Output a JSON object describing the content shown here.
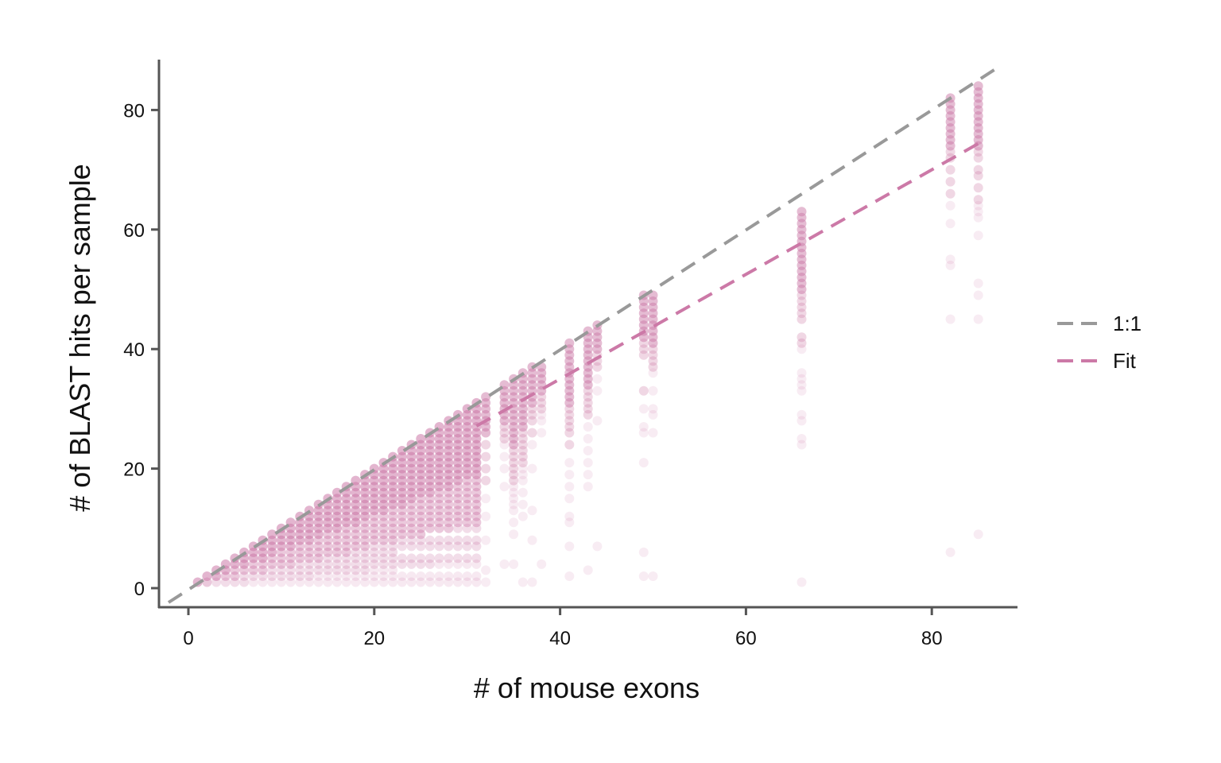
{
  "chart_data": {
    "type": "scatter",
    "xlabel": "# of mouse exons",
    "ylabel": "# of BLAST hits per sample",
    "xlim": [
      -3,
      88
    ],
    "ylim": [
      -3,
      88
    ],
    "x_ticks": [
      0,
      20,
      40,
      60,
      80
    ],
    "y_ticks": [
      0,
      20,
      40,
      60,
      80
    ],
    "grid": false,
    "legend_position": "right",
    "point_color": "#cc79a7",
    "lines": [
      {
        "name": "1:1",
        "color": "#999999",
        "style": "dashed",
        "slope": 1,
        "intercept": 0
      },
      {
        "name": "Fit",
        "color": "#cc79a7",
        "style": "dashed",
        "slope": 0.875,
        "intercept": 0,
        "x_from": 31
      }
    ],
    "series": [
      {
        "name": "samples",
        "description_of_density": "for x from 1 to 30 nearly every integer y from 1 to x is present",
        "dense_x_range": [
          1,
          31
        ],
        "columns": [
          {
            "x": 32,
            "y": [
              1,
              3,
              8,
              12,
              15,
              18,
              20,
              22,
              24,
              26,
              27,
              28,
              29,
              30,
              31,
              32
            ]
          },
          {
            "x": 34,
            "y": [
              4,
              17,
              20,
              22,
              24,
              25,
              26,
              27,
              28,
              29,
              30,
              31,
              32,
              33,
              34
            ]
          },
          {
            "x": 35,
            "y": [
              4,
              9,
              11,
              13,
              14,
              15,
              16,
              17,
              18,
              19,
              20,
              21,
              22,
              23,
              24,
              25,
              26,
              27,
              28,
              29,
              30,
              31,
              32,
              33,
              34,
              35
            ]
          },
          {
            "x": 36,
            "y": [
              1,
              12,
              14,
              16,
              18,
              19,
              20,
              21,
              22,
              23,
              24,
              25,
              26,
              27,
              28,
              29,
              30,
              31,
              32,
              33,
              34,
              35,
              36
            ]
          },
          {
            "x": 37,
            "y": [
              1,
              8,
              13,
              20,
              24,
              26,
              28,
              29,
              30,
              31,
              32,
              33,
              34,
              35,
              36,
              37
            ]
          },
          {
            "x": 38,
            "y": [
              4,
              26,
              28,
              29,
              30,
              31,
              32,
              33,
              34,
              35,
              36,
              37
            ]
          },
          {
            "x": 41,
            "y": [
              2,
              7,
              11,
              12,
              15,
              17,
              19,
              21,
              24,
              26,
              27,
              28,
              29,
              30,
              31,
              32,
              33,
              34,
              35,
              36,
              37,
              38,
              39,
              40,
              41
            ]
          },
          {
            "x": 43,
            "y": [
              3,
              17,
              19,
              21,
              23,
              25,
              27,
              29,
              30,
              31,
              32,
              33,
              34,
              35,
              36,
              37,
              38,
              39,
              40,
              41,
              42,
              43
            ]
          },
          {
            "x": 44,
            "y": [
              7,
              28,
              33,
              35,
              37,
              38,
              39,
              40,
              41,
              42,
              43,
              44
            ]
          },
          {
            "x": 49,
            "y": [
              2,
              6,
              21,
              26,
              27,
              30,
              33,
              39,
              40,
              41,
              42,
              43,
              44,
              45,
              46,
              47,
              48,
              49
            ]
          },
          {
            "x": 50,
            "y": [
              2,
              26,
              29,
              30,
              33,
              36,
              37,
              38,
              39,
              40,
              41,
              42,
              43,
              44,
              45,
              46,
              47,
              48,
              49
            ]
          },
          {
            "x": 66,
            "y": [
              1,
              24,
              25,
              28,
              29,
              33,
              34,
              35,
              36,
              40,
              41,
              42,
              45,
              46,
              47,
              48,
              49,
              50,
              51,
              52,
              53,
              54,
              55,
              56,
              57,
              58,
              59,
              60,
              61,
              62,
              63
            ]
          },
          {
            "x": 82,
            "y": [
              6,
              45,
              54,
              55,
              61,
              64,
              66,
              68,
              70,
              72,
              73,
              74,
              75,
              76,
              77,
              78,
              79,
              80,
              81,
              82
            ]
          },
          {
            "x": 85,
            "y": [
              9,
              45,
              49,
              51,
              59,
              62,
              63,
              64,
              65,
              67,
              69,
              70,
              72,
              73,
              74,
              75,
              76,
              77,
              78,
              79,
              80,
              81,
              82,
              83,
              84
            ]
          }
        ]
      }
    ]
  }
}
